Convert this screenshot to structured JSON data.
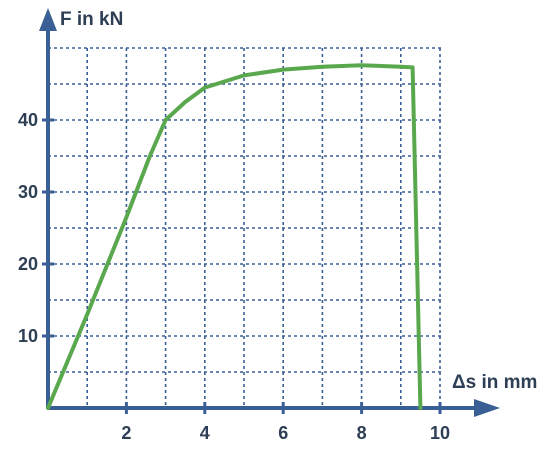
{
  "chart_data": {
    "type": "line",
    "title": "",
    "xlabel": "Δs in mm",
    "ylabel": "F in kN",
    "xlim": [
      0,
      10
    ],
    "ylim": [
      0,
      50
    ],
    "xticks": [
      2,
      4,
      6,
      8,
      10
    ],
    "yticks": [
      10,
      20,
      30,
      40
    ],
    "grid": true,
    "grid_x_step": 1,
    "grid_y_step": 5,
    "legend": "none",
    "series": [
      {
        "x": [
          0,
          1.0,
          2.0,
          2.6,
          3.0,
          3.5,
          4.0,
          5.0,
          6.0,
          7.0,
          8.0,
          9.0,
          9.3,
          9.5
        ],
        "y": [
          0,
          13.0,
          26.5,
          35.0,
          40.0,
          42.5,
          44.5,
          46.2,
          47.0,
          47.4,
          47.6,
          47.4,
          47.3,
          0
        ],
        "color": "#5aa84e"
      }
    ],
    "colors": {
      "axis": "#3a5f95",
      "grid": "#3a5f95",
      "line": "#5aa84e",
      "text": "#2d3e55"
    }
  }
}
